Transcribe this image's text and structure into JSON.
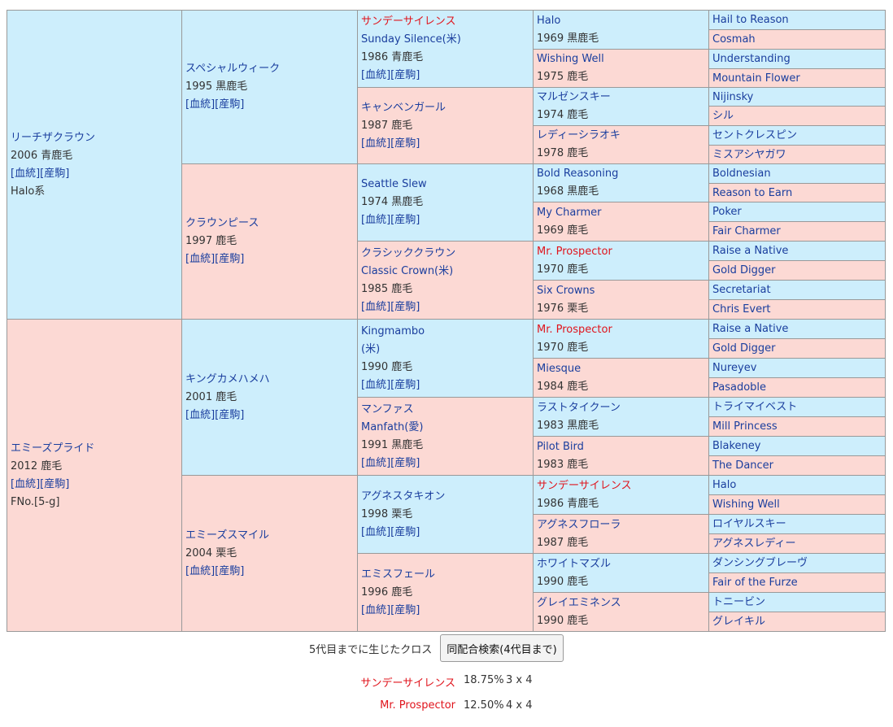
{
  "pedigree": {
    "gen1": [
      {
        "name": "リーチザクラウン",
        "info": "2006 青鹿毛",
        "links": [
          "[血統]",
          "[産駒]"
        ],
        "note": "Halo系"
      },
      {
        "name": "エミーズプライド",
        "info": "2012 鹿毛",
        "links": [
          "[血統]",
          "[産駒]"
        ],
        "note": "FNo.[5-g]"
      }
    ],
    "gen2": [
      {
        "name": "スペシャルウィーク",
        "info": "1995 黒鹿毛",
        "links": [
          "[血統]",
          "[産駒]"
        ]
      },
      {
        "name": "クラウンピース",
        "info": "1997 鹿毛",
        "links": [
          "[血統]",
          "[産駒]"
        ]
      },
      {
        "name": "キングカメハメハ",
        "info": "2001 鹿毛",
        "links": [
          "[血統]",
          "[産駒]"
        ]
      },
      {
        "name": "エミーズスマイル",
        "info": "2004 栗毛",
        "links": [
          "[血統]",
          "[産駒]"
        ]
      }
    ],
    "gen3": [
      {
        "name": "サンデーサイレンス",
        "alt": "Sunday Silence(米)",
        "info": "1986 青鹿毛",
        "links": [
          "[血統]",
          "[産駒]"
        ],
        "red": true
      },
      {
        "name": "キャンベンガール",
        "info": "1987 鹿毛",
        "links": [
          "[血統]",
          "[産駒]"
        ]
      },
      {
        "name": "Seattle Slew",
        "info": "1974 黒鹿毛",
        "links": [
          "[血統]",
          "[産駒]"
        ]
      },
      {
        "name": "クラシッククラウン",
        "alt": "Classic Crown(米)",
        "info": "1985 鹿毛",
        "links": [
          "[血統]",
          "[産駒]"
        ]
      },
      {
        "name": "Kingmambo",
        "alt": "(米)",
        "info": "1990 鹿毛",
        "links": [
          "[血統]",
          "[産駒]"
        ]
      },
      {
        "name": "マンファス",
        "alt": "Manfath(愛)",
        "info": "1991 黒鹿毛",
        "links": [
          "[血統]",
          "[産駒]"
        ]
      },
      {
        "name": "アグネスタキオン",
        "info": "1998 栗毛",
        "links": [
          "[血統]",
          "[産駒]"
        ]
      },
      {
        "name": "エミスフェール",
        "info": "1996 鹿毛",
        "links": [
          "[血統]",
          "[産駒]"
        ]
      }
    ],
    "gen4": [
      {
        "name": "Halo",
        "info": "1969 黒鹿毛"
      },
      {
        "name": "Wishing Well",
        "info": "1975 鹿毛"
      },
      {
        "name": "マルゼンスキー",
        "info": "1974 鹿毛"
      },
      {
        "name": "レディーシラオキ",
        "info": "1978 鹿毛"
      },
      {
        "name": "Bold Reasoning",
        "info": "1968 黒鹿毛"
      },
      {
        "name": "My Charmer",
        "info": "1969 鹿毛"
      },
      {
        "name": "Mr. Prospector",
        "info": "1970 鹿毛",
        "red": true
      },
      {
        "name": "Six Crowns",
        "info": "1976 栗毛"
      },
      {
        "name": "Mr. Prospector",
        "info": "1970 鹿毛",
        "red": true
      },
      {
        "name": "Miesque",
        "info": "1984 鹿毛"
      },
      {
        "name": "ラストタイクーン",
        "info": "1983 黒鹿毛"
      },
      {
        "name": "Pilot Bird",
        "info": "1983 鹿毛"
      },
      {
        "name": "サンデーサイレンス",
        "info": "1986 青鹿毛",
        "red": true
      },
      {
        "name": "アグネスフローラ",
        "info": "1987 鹿毛"
      },
      {
        "name": "ホワイトマズル",
        "info": "1990 鹿毛"
      },
      {
        "name": "グレイエミネンス",
        "info": "1990 鹿毛"
      }
    ],
    "gen5": [
      "Hail to Reason",
      "Cosmah",
      "Understanding",
      "Mountain Flower",
      "Nijinsky",
      "シル",
      "セントクレスピン",
      "ミスアシヤガワ",
      "Boldnesian",
      "Reason to Earn",
      "Poker",
      "Fair Charmer",
      "Raise a Native",
      "Gold Digger",
      "Secretariat",
      "Chris Evert",
      "Raise a Native",
      "Gold Digger",
      "Nureyev",
      "Pasadoble",
      "トライマイベスト",
      "Mill Princess",
      "Blakeney",
      "The Dancer",
      "Halo",
      "Wishing Well",
      "ロイヤルスキー",
      "アグネスレディー",
      "ダンシングブレーヴ",
      "Fair of the Furze",
      "トニービン",
      "グレイキル"
    ]
  },
  "cross": {
    "label": "5代目までに生じたクロス",
    "search_button": "同配合検索(4代目まで)",
    "rows": [
      {
        "name": "サンデーサイレンス",
        "pct": "18.75%",
        "gen": "3 x 4"
      },
      {
        "name": "Mr. Prospector",
        "pct": "12.50%",
        "gen": "4 x 4"
      }
    ]
  },
  "colors": {
    "male_bg": "#cdeefc",
    "female_bg": "#fcd9d4",
    "link": "#1a3e9e",
    "cross_red": "#e0141c"
  }
}
